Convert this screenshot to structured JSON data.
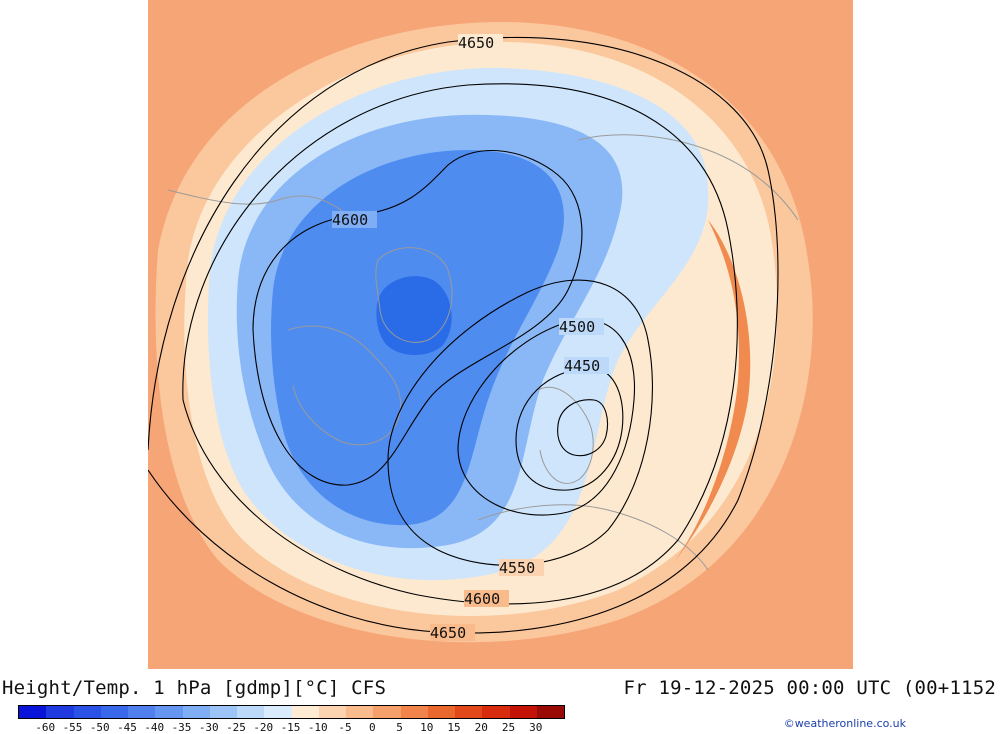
{
  "header": {
    "title": "Height/Temp. 1 hPa [gdmp][°C] CFS",
    "valid_time": "Fr 19-12-2025 00:00 UTC (00+1152"
  },
  "map": {
    "contour_labels": [
      "4650",
      "4600",
      "4500",
      "4450",
      "4550",
      "4600",
      "4650"
    ],
    "colors": {
      "very_cold": "#2a6be8",
      "cold": "#4f8cf0",
      "cool": "#8ab8f7",
      "light_cool": "#cfe5fb",
      "neutral": "#fde9cf",
      "warm_light": "#fbc79d",
      "warm": "#f6a577",
      "warm_strong": "#f08a4f",
      "coast": "#9a9a9a"
    }
  },
  "legend": {
    "tick_labels": [
      "-60",
      "-55",
      "-50",
      "-45",
      "-40",
      "-35",
      "-30",
      "-25",
      "-20",
      "-15",
      "-10",
      "-5",
      "0",
      "5",
      "10",
      "15",
      "20",
      "25",
      "30"
    ],
    "colors": [
      "#0a14d8",
      "#1e3ae0",
      "#2a52e6",
      "#3a68ea",
      "#4f80ee",
      "#6596f1",
      "#80aef5",
      "#9cc4f8",
      "#bcd9fa",
      "#d9ebfc",
      "#fdebd3",
      "#fbd3b0",
      "#f9bb8c",
      "#f5a06b",
      "#f0844a",
      "#ea672e",
      "#e2481a",
      "#d82c0e",
      "#c51207",
      "#9a0a05"
    ]
  },
  "credit": "©weatheronline.co.uk"
}
